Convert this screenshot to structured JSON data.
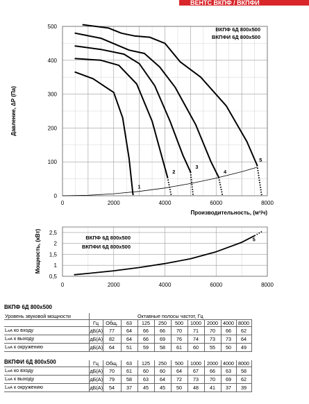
{
  "brand": "ВЕНТС ВКПФ / ВКПФИ",
  "chart_data": [
    {
      "type": "line",
      "legend": [
        "ВКПФ 6Д 800x500",
        "ВКПФИ 6Д 800x500"
      ],
      "xlabel": "Производительность, (м³/ч)",
      "ylabel": "Давление, ΔP (Па)",
      "xlim": [
        0,
        8000
      ],
      "ylim": [
        0,
        500
      ],
      "xticks": [
        "0",
        "2000",
        "4000",
        "6000",
        "8000"
      ],
      "yticks": [
        "0",
        "100",
        "200",
        "300",
        "400",
        "500"
      ],
      "grid": true,
      "series": [
        {
          "label": "1",
          "x": [
            500,
            1200,
            2000,
            2350,
            2600,
            2750
          ],
          "y": [
            365,
            345,
            305,
            230,
            110,
            5
          ]
        },
        {
          "label": "2",
          "x": [
            500,
            1500,
            2200,
            2900,
            3500,
            3900,
            4100
          ],
          "y": [
            405,
            400,
            385,
            330,
            220,
            110,
            55
          ]
        },
        {
          "label": "3",
          "x": [
            500,
            1500,
            2400,
            3000,
            3600,
            4200,
            4700,
            5000
          ],
          "y": [
            442,
            432,
            418,
            390,
            325,
            220,
            120,
            70
          ]
        },
        {
          "label": "4",
          "x": [
            500,
            1500,
            2600,
            3200,
            3800,
            4400,
            5200,
            5800,
            6100
          ],
          "y": [
            480,
            465,
            430,
            420,
            380,
            320,
            210,
            100,
            55
          ]
        },
        {
          "label": "5",
          "x": [
            800,
            1800,
            2300,
            2800,
            3400,
            4000,
            4600,
            5400,
            6400,
            7200,
            7600
          ],
          "y": [
            505,
            495,
            480,
            472,
            468,
            450,
            395,
            350,
            265,
            160,
            90
          ]
        }
      ],
      "dotted_extensions": [
        {
          "x": [
            2750,
            2780
          ],
          "y": [
            5,
            0
          ]
        },
        {
          "x": [
            4100,
            4250
          ],
          "y": [
            55,
            0
          ]
        },
        {
          "x": [
            5000,
            5100
          ],
          "y": [
            70,
            0
          ]
        },
        {
          "x": [
            6100,
            6250
          ],
          "y": [
            55,
            0
          ]
        },
        {
          "x": [
            7600,
            7780
          ],
          "y": [
            90,
            0
          ]
        }
      ],
      "system_curve": {
        "x": [
          0,
          1000,
          2000,
          3000,
          4000,
          5000,
          6000,
          7000,
          7600
        ],
        "y": [
          0,
          1.5,
          6,
          13,
          23,
          36,
          52,
          71,
          84
        ]
      }
    },
    {
      "type": "line",
      "legend": [
        "ВКПФ 6Д 800x500",
        "ВКПФИ 6Д 800x500"
      ],
      "ylabel": "Мощность, (кВт)",
      "xlim": [
        0,
        8000
      ],
      "ylim": [
        0.5,
        2.75
      ],
      "xticks": [
        "0",
        "2000",
        "4000",
        "6000",
        "8000"
      ],
      "yticks": [
        "0,5",
        "1",
        "1,5",
        "2",
        "2,5"
      ],
      "grid": true,
      "series": [
        {
          "label": "5",
          "x": [
            450,
            1000,
            2000,
            3000,
            4000,
            5000,
            6000,
            7000,
            7500
          ],
          "y": [
            0.57,
            0.63,
            0.75,
            0.9,
            1.08,
            1.3,
            1.62,
            2.05,
            2.35
          ]
        }
      ],
      "dotted_extensions": [
        {
          "x": [
            7500,
            7800
          ],
          "y": [
            2.35,
            2.55
          ]
        }
      ]
    }
  ],
  "table1": {
    "title": "ВКПФ 6Д 800x500",
    "level_label": "Уровень звуковой мощности",
    "octave_label": "Октавные полосы частот, Гц",
    "hz_label": "Гц",
    "headers": [
      "Общ.",
      "63",
      "125",
      "250",
      "500",
      "1000",
      "2000",
      "4000",
      "8000"
    ],
    "rows": [
      {
        "label": "L",
        "sub": "wA",
        "label_rest": " ко входу",
        "unit": "дБ(А)",
        "values": [
          "77",
          "64",
          "66",
          "66",
          "70",
          "71",
          "70",
          "66",
          "62"
        ]
      },
      {
        "label": "L",
        "sub": "wA",
        "label_rest": " к выходу",
        "unit": "дБ(А)",
        "values": [
          "82",
          "64",
          "66",
          "69",
          "76",
          "74",
          "73",
          "73",
          "64"
        ]
      },
      {
        "label": "L",
        "sub": "wA",
        "label_rest": " к окружению",
        "unit": "дБ(А)",
        "values": [
          "64",
          "51",
          "59",
          "58",
          "61",
          "60",
          "55",
          "50",
          "49"
        ]
      }
    ]
  },
  "table2": {
    "title": "ВКПФИ 6Д 800x500",
    "hz_label": "Гц",
    "headers": [
      "Общ.",
      "63",
      "125",
      "250",
      "500",
      "1000",
      "2000",
      "4000",
      "8000"
    ],
    "rows": [
      {
        "label": "L",
        "sub": "wA",
        "label_rest": " ко входу",
        "unit": "дБ(А)",
        "values": [
          "70",
          "61",
          "60",
          "60",
          "64",
          "67",
          "66",
          "63",
          "58"
        ]
      },
      {
        "label": "L",
        "sub": "wA",
        "label_rest": " к выходу",
        "unit": "дБ(А)",
        "values": [
          "79",
          "58",
          "63",
          "64",
          "72",
          "73",
          "70",
          "69",
          "62"
        ]
      },
      {
        "label": "L",
        "sub": "wA",
        "label_rest": " к окружению",
        "unit": "дБ(А)",
        "values": [
          "54",
          "37",
          "45",
          "45",
          "50",
          "48",
          "41",
          "37",
          "39"
        ]
      }
    ]
  }
}
